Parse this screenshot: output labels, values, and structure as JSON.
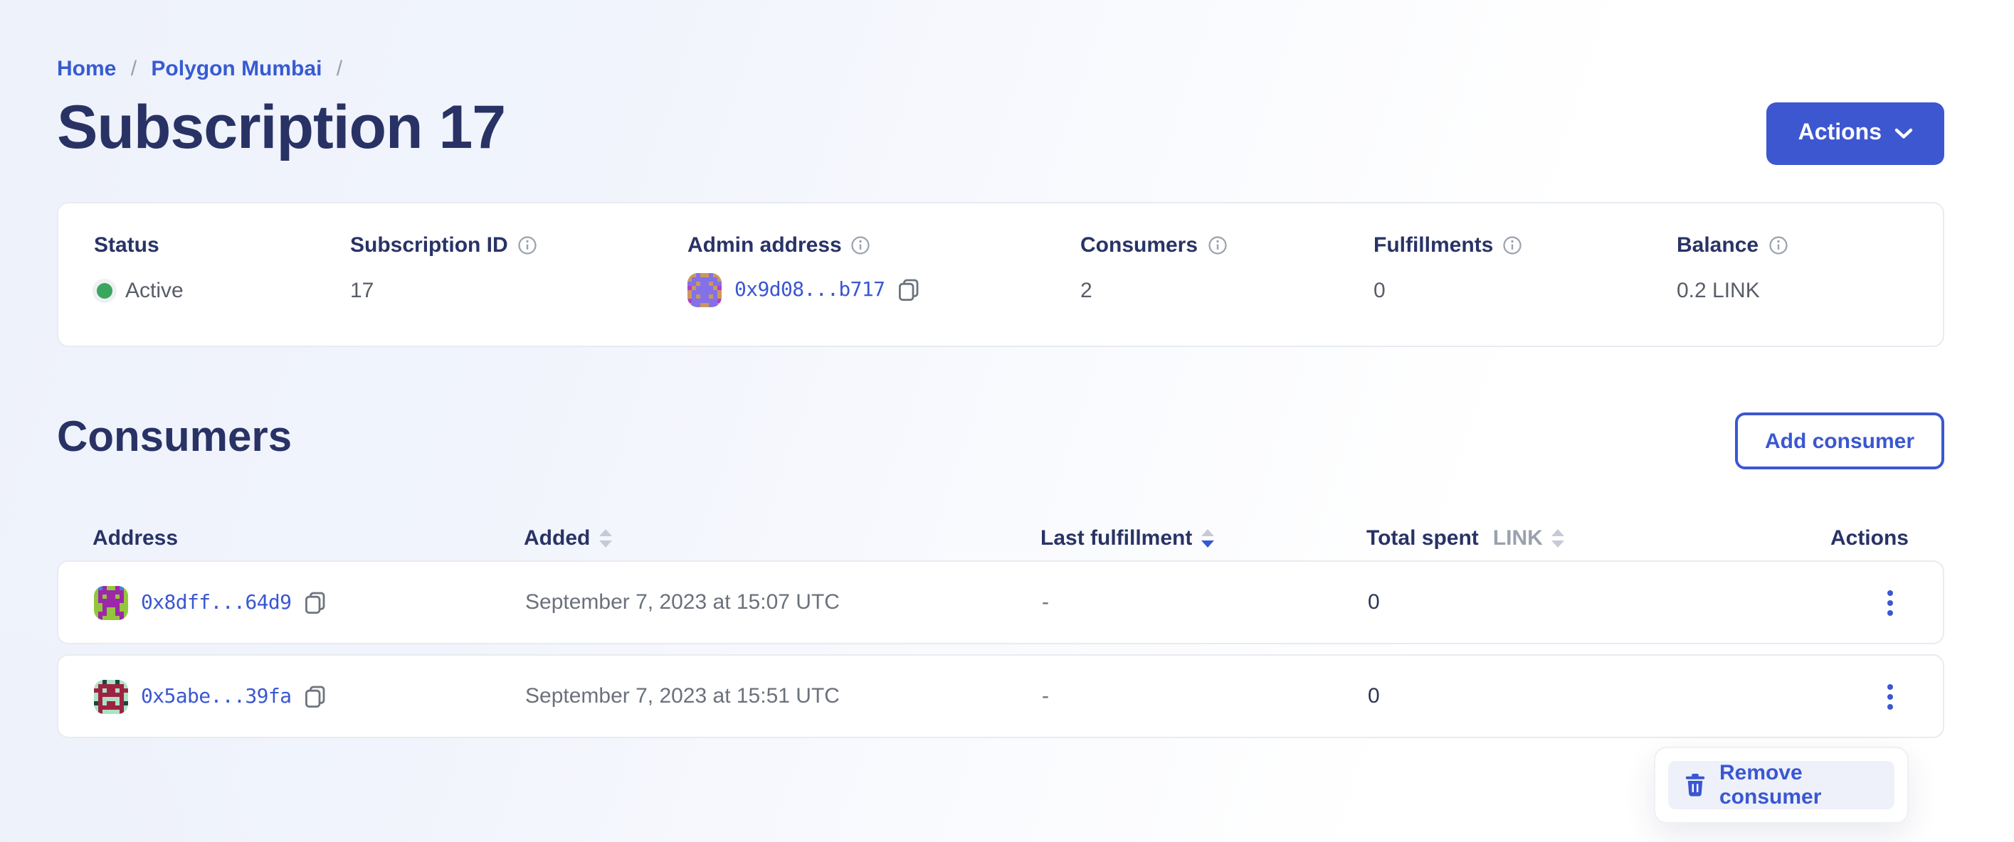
{
  "colors": {
    "accent": "#375bd2",
    "heading_navy": "#293264",
    "success_green": "#3aa55d",
    "muted_text": "#5b616b",
    "menu_item_bg": "#eef1f9"
  },
  "icons": [
    "info-icon",
    "copy-icon",
    "chevron-down-icon",
    "sort-icon",
    "kebab-icon",
    "trash-icon",
    "status-dot"
  ],
  "breadcrumb": {
    "separator": "/",
    "items": [
      {
        "label": "Home"
      },
      {
        "label": "Polygon Mumbai"
      }
    ]
  },
  "page": {
    "title": "Subscription 17"
  },
  "header": {
    "actions_button": "Actions"
  },
  "summary": {
    "status": {
      "label": "Status",
      "value": "Active"
    },
    "subscription_id": {
      "label": "Subscription ID",
      "value": "17"
    },
    "admin_address": {
      "label": "Admin address",
      "value": "0x9d08...b717"
    },
    "consumers": {
      "label": "Consumers",
      "value": "2"
    },
    "fulfillments": {
      "label": "Fulfillments",
      "value": "0"
    },
    "balance": {
      "label": "Balance",
      "value": "0.2 LINK"
    }
  },
  "consumers_section": {
    "title": "Consumers",
    "add_button": "Add consumer",
    "table": {
      "headers": {
        "address": "Address",
        "added": "Added",
        "last_fulfillment": "Last fulfillment",
        "total_spent": "Total spent",
        "total_spent_unit": "LINK",
        "actions": "Actions"
      },
      "rows": [
        {
          "address": "0x8dff...64d9",
          "added": "September 7, 2023 at 15:07 UTC",
          "last_fulfillment": "-",
          "total_spent": "0"
        },
        {
          "address": "0x5abe...39fa",
          "added": "September 7, 2023 at 15:51 UTC",
          "last_fulfillment": "-",
          "total_spent": "0"
        }
      ]
    }
  },
  "context_menu": {
    "items": [
      {
        "label": "Remove consumer",
        "icon": "trash-icon"
      }
    ]
  },
  "avatars": {
    "admin": {
      "colors": {
        "b": "#c9995c",
        "f": "#8470e8",
        "a": "#b13fd1"
      },
      "grid": [
        "bbfbbfbb",
        "bffffffb",
        "ffbffbff",
        "abffffba",
        "bffffffb",
        "bfbffbfb",
        "affffffa",
        "bffbbffb"
      ]
    },
    "row0": {
      "colors": {
        "b": "#94c63d",
        "f": "#9c27a8",
        "a": "#4a7edb"
      },
      "grid": [
        "bafbbfab",
        "bffffffb",
        "bfbffbfb",
        "bffffffb",
        "bbffffbb",
        "bbfbbfbb",
        "bffbbffb",
        "bfbbbbfb"
      ]
    },
    "row1": {
      "colors": {
        "b": "#abe3c4",
        "f": "#9e2342",
        "a": "#1d4444"
      },
      "grid": [
        "bbabbabb",
        "bffffffb",
        "ffbffbff",
        "bffffffb",
        "bfbbbbfb",
        "afbffbfa",
        "bffffffb",
        "bfbbbbfb"
      ]
    }
  }
}
